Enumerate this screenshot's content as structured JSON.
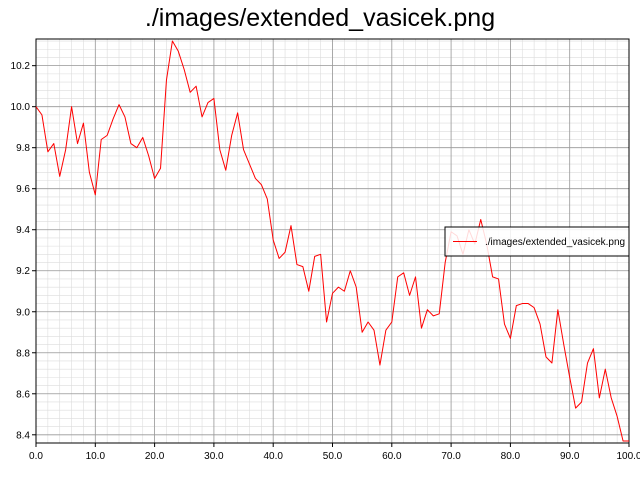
{
  "chart_data": {
    "type": "line",
    "title": "./images/extended_vasicek.png",
    "xlabel": "",
    "ylabel": "",
    "xlim": [
      0,
      100
    ],
    "ylim": [
      8.36,
      10.33
    ],
    "grid": true,
    "legend_position": "right",
    "x_ticks": [
      "0.0",
      "10.0",
      "20.0",
      "30.0",
      "40.0",
      "50.0",
      "60.0",
      "70.0",
      "80.0",
      "90.0",
      "100.0"
    ],
    "y_ticks": [
      "8.4",
      "8.6",
      "8.8",
      "9.0",
      "9.2",
      "9.4",
      "9.6",
      "9.8",
      "10.0",
      "10.2"
    ],
    "series": [
      {
        "name": "./images/extended_vasicek.png",
        "color": "#ff0000",
        "x": [
          0,
          1,
          2,
          3,
          4,
          5,
          6,
          7,
          8,
          9,
          10,
          11,
          12,
          13,
          14,
          15,
          16,
          17,
          18,
          19,
          20,
          21,
          22,
          23,
          24,
          25,
          26,
          27,
          28,
          29,
          30,
          31,
          32,
          33,
          34,
          35,
          36,
          37,
          38,
          39,
          40,
          41,
          42,
          43,
          44,
          45,
          46,
          47,
          48,
          49,
          50,
          51,
          52,
          53,
          54,
          55,
          56,
          57,
          58,
          59,
          60,
          61,
          62,
          63,
          64,
          65,
          66,
          67,
          68,
          69,
          70,
          71,
          72,
          73,
          74,
          75,
          76,
          77,
          78,
          79,
          80,
          81,
          82,
          83,
          84,
          85,
          86,
          87,
          88,
          89,
          90,
          91,
          92,
          93,
          94,
          95,
          96,
          97,
          98,
          99,
          100
        ],
        "values": [
          10.0,
          9.96,
          9.78,
          9.82,
          9.66,
          9.79,
          10.0,
          9.82,
          9.92,
          9.68,
          9.57,
          9.84,
          9.86,
          9.94,
          10.01,
          9.95,
          9.82,
          9.8,
          9.85,
          9.76,
          9.65,
          9.7,
          10.13,
          10.32,
          10.27,
          10.18,
          10.07,
          10.1,
          9.95,
          10.02,
          10.04,
          9.79,
          9.69,
          9.86,
          9.97,
          9.79,
          9.72,
          9.65,
          9.62,
          9.55,
          9.35,
          9.26,
          9.29,
          9.42,
          9.23,
          9.22,
          9.1,
          9.27,
          9.28,
          8.95,
          9.09,
          9.12,
          9.1,
          9.2,
          9.12,
          8.9,
          8.95,
          8.91,
          8.74,
          8.91,
          8.95,
          9.17,
          9.19,
          9.08,
          9.17,
          8.92,
          9.01,
          8.98,
          8.99,
          9.24,
          9.39,
          9.37,
          9.28,
          9.4,
          9.33,
          9.45,
          9.33,
          9.17,
          9.16,
          8.94,
          8.87,
          9.03,
          9.04,
          9.04,
          9.02,
          8.94,
          8.78,
          8.75,
          9.01,
          8.84,
          8.68,
          8.53,
          8.56,
          8.75,
          8.82,
          8.58,
          8.72,
          8.58,
          8.49,
          8.37,
          8.37
        ]
      }
    ]
  }
}
